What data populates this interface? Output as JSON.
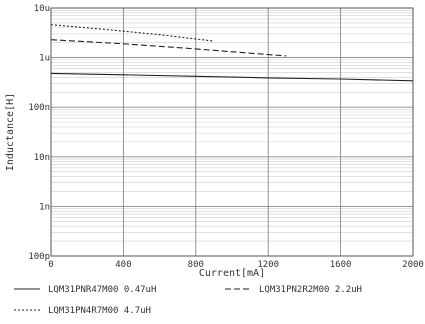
{
  "chart_data": {
    "type": "line",
    "title": "",
    "xlabel": "Current[mA]",
    "ylabel": "Inductance[H]",
    "xlim": [
      0,
      2000
    ],
    "ylim": [
      1e-10,
      1e-05
    ],
    "yscale": "log",
    "grid": true,
    "legend_position": "bottom",
    "x_ticks": [
      {
        "value": 0,
        "label": "0"
      },
      {
        "value": 400,
        "label": "400"
      },
      {
        "value": 800,
        "label": "800"
      },
      {
        "value": 1200,
        "label": "1200"
      },
      {
        "value": 1600,
        "label": "1600"
      },
      {
        "value": 2000,
        "label": "2000"
      }
    ],
    "y_ticks": [
      {
        "value": 1e-10,
        "label": "100p"
      },
      {
        "value": 1e-09,
        "label": "1n"
      },
      {
        "value": 1e-08,
        "label": "10n"
      },
      {
        "value": 1e-07,
        "label": "100n"
      },
      {
        "value": 1e-06,
        "label": "1u"
      },
      {
        "value": 1e-05,
        "label": "10u"
      }
    ],
    "series": [
      {
        "name": "LQM31PNR47M00 0.47uH",
        "style": "solid",
        "color": "#222222",
        "x": [
          0,
          400,
          800,
          1200,
          1600,
          2000
        ],
        "y": [
          4.8e-07,
          4.5e-07,
          4.2e-07,
          3.9e-07,
          3.7e-07,
          3.4e-07
        ]
      },
      {
        "name": "LQM31PN2R2M00 2.2uH",
        "style": "dashed",
        "color": "#222222",
        "x": [
          0,
          400,
          800,
          1200,
          1300
        ],
        "y": [
          2.3e-06,
          1.9e-06,
          1.5e-06,
          1.15e-06,
          1.08e-06
        ]
      },
      {
        "name": "LQM31PN4R7M00 4.7uH",
        "style": "dotted",
        "color": "#222222",
        "x": [
          0,
          300,
          600,
          900
        ],
        "y": [
          4.6e-06,
          3.7e-06,
          2.9e-06,
          2.15e-06
        ]
      }
    ]
  }
}
